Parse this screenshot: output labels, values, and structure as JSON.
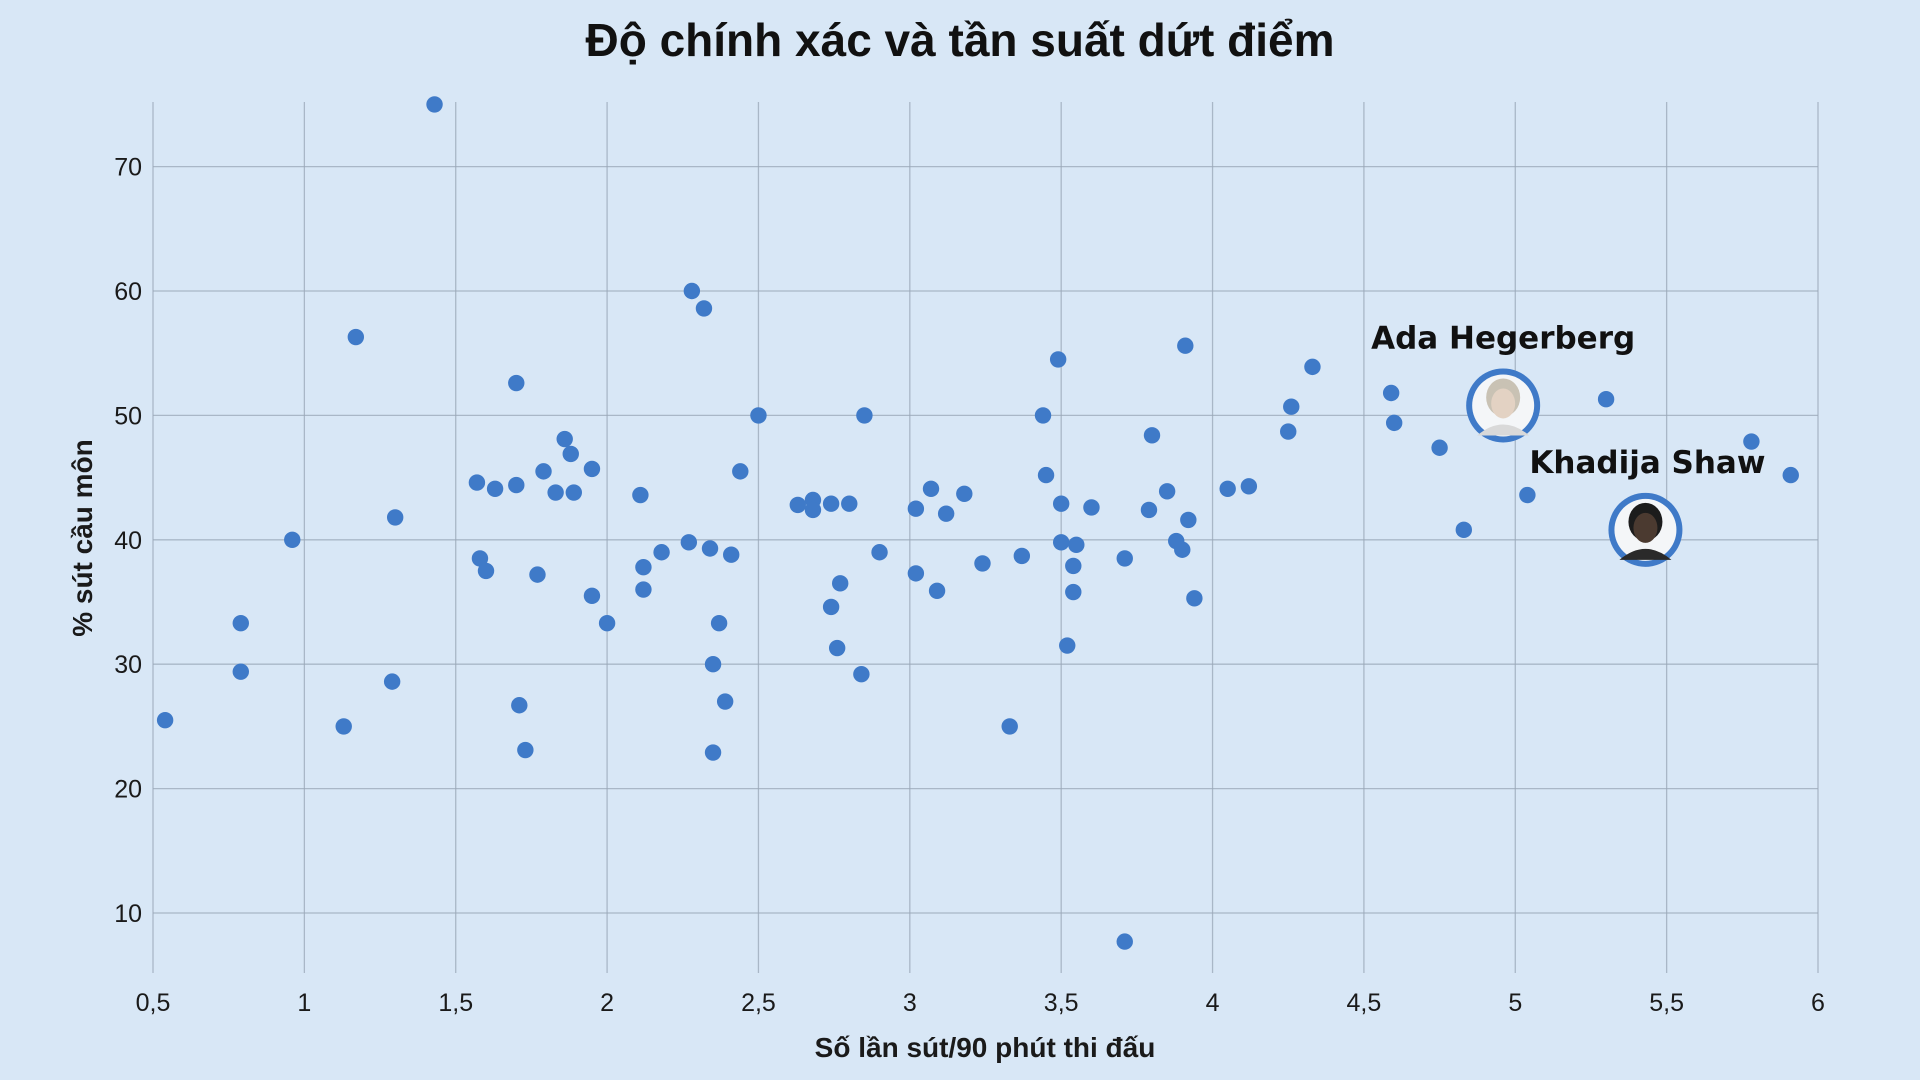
{
  "chart_data": {
    "type": "scatter",
    "title": "Độ chính xác và tần suất dứt điểm",
    "xlabel": "Số lần sút/90 phút thi đấu",
    "ylabel": "% sút cầu môn",
    "xlim": [
      0.5,
      6
    ],
    "ylim": [
      5,
      76
    ],
    "x_ticks": [
      0.5,
      1,
      1.5,
      2,
      2.5,
      3,
      3.5,
      4,
      4.5,
      5,
      5.5,
      6
    ],
    "x_tick_labels": [
      "0,5",
      "1",
      "1,5",
      "2",
      "2,5",
      "3",
      "3,5",
      "4",
      "4,5",
      "5",
      "5,5",
      "6"
    ],
    "y_ticks": [
      10,
      20,
      30,
      40,
      50,
      60,
      70
    ],
    "y_tick_labels": [
      "10",
      "20",
      "30",
      "40",
      "50",
      "60",
      "70"
    ],
    "grid": true,
    "colors": {
      "point": "#3f7ac8",
      "background": "#d8e7f6",
      "grid": "#9aa8b8"
    },
    "points": [
      {
        "x": 0.54,
        "y": 25.5
      },
      {
        "x": 0.79,
        "y": 33.3
      },
      {
        "x": 0.79,
        "y": 29.4
      },
      {
        "x": 0.96,
        "y": 40.0
      },
      {
        "x": 1.13,
        "y": 25.0
      },
      {
        "x": 1.17,
        "y": 56.3
      },
      {
        "x": 1.29,
        "y": 28.6
      },
      {
        "x": 1.3,
        "y": 41.8
      },
      {
        "x": 1.43,
        "y": 75.0
      },
      {
        "x": 1.57,
        "y": 44.6
      },
      {
        "x": 1.58,
        "y": 38.5
      },
      {
        "x": 1.6,
        "y": 37.5
      },
      {
        "x": 1.63,
        "y": 44.1
      },
      {
        "x": 1.7,
        "y": 52.6
      },
      {
        "x": 1.7,
        "y": 44.4
      },
      {
        "x": 1.71,
        "y": 26.7
      },
      {
        "x": 1.73,
        "y": 23.1
      },
      {
        "x": 1.77,
        "y": 37.2
      },
      {
        "x": 1.79,
        "y": 45.5
      },
      {
        "x": 1.83,
        "y": 43.8
      },
      {
        "x": 1.86,
        "y": 48.1
      },
      {
        "x": 1.88,
        "y": 46.9
      },
      {
        "x": 1.89,
        "y": 43.8
      },
      {
        "x": 1.95,
        "y": 45.7
      },
      {
        "x": 1.95,
        "y": 35.5
      },
      {
        "x": 2.0,
        "y": 33.3
      },
      {
        "x": 2.11,
        "y": 43.6
      },
      {
        "x": 2.12,
        "y": 37.8
      },
      {
        "x": 2.12,
        "y": 36.0
      },
      {
        "x": 2.18,
        "y": 39.0
      },
      {
        "x": 2.27,
        "y": 39.8
      },
      {
        "x": 2.28,
        "y": 60.0
      },
      {
        "x": 2.32,
        "y": 58.6
      },
      {
        "x": 2.34,
        "y": 39.3
      },
      {
        "x": 2.35,
        "y": 30.0
      },
      {
        "x": 2.35,
        "y": 22.9
      },
      {
        "x": 2.37,
        "y": 33.3
      },
      {
        "x": 2.39,
        "y": 27.0
      },
      {
        "x": 2.41,
        "y": 38.8
      },
      {
        "x": 2.44,
        "y": 45.5
      },
      {
        "x": 2.5,
        "y": 50.0
      },
      {
        "x": 2.63,
        "y": 42.8
      },
      {
        "x": 2.68,
        "y": 43.2
      },
      {
        "x": 2.68,
        "y": 42.4
      },
      {
        "x": 2.74,
        "y": 42.9
      },
      {
        "x": 2.74,
        "y": 34.6
      },
      {
        "x": 2.76,
        "y": 31.3
      },
      {
        "x": 2.77,
        "y": 36.5
      },
      {
        "x": 2.8,
        "y": 42.9
      },
      {
        "x": 2.84,
        "y": 29.2
      },
      {
        "x": 2.85,
        "y": 50.0
      },
      {
        "x": 2.9,
        "y": 39.0
      },
      {
        "x": 3.02,
        "y": 37.3
      },
      {
        "x": 3.02,
        "y": 42.5
      },
      {
        "x": 3.07,
        "y": 44.1
      },
      {
        "x": 3.09,
        "y": 35.9
      },
      {
        "x": 3.12,
        "y": 42.1
      },
      {
        "x": 3.18,
        "y": 43.7
      },
      {
        "x": 3.24,
        "y": 38.1
      },
      {
        "x": 3.33,
        "y": 25.0
      },
      {
        "x": 3.37,
        "y": 38.7
      },
      {
        "x": 3.44,
        "y": 50.0
      },
      {
        "x": 3.45,
        "y": 45.2
      },
      {
        "x": 3.49,
        "y": 54.5
      },
      {
        "x": 3.5,
        "y": 42.9
      },
      {
        "x": 3.5,
        "y": 39.8
      },
      {
        "x": 3.52,
        "y": 31.5
      },
      {
        "x": 3.54,
        "y": 37.9
      },
      {
        "x": 3.54,
        "y": 35.8
      },
      {
        "x": 3.55,
        "y": 39.6
      },
      {
        "x": 3.6,
        "y": 42.6
      },
      {
        "x": 3.71,
        "y": 38.5
      },
      {
        "x": 3.71,
        "y": 7.7
      },
      {
        "x": 3.79,
        "y": 42.4
      },
      {
        "x": 3.8,
        "y": 48.4
      },
      {
        "x": 3.85,
        "y": 43.9
      },
      {
        "x": 3.88,
        "y": 39.9
      },
      {
        "x": 3.9,
        "y": 39.2
      },
      {
        "x": 3.91,
        "y": 55.6
      },
      {
        "x": 3.92,
        "y": 41.6
      },
      {
        "x": 3.94,
        "y": 35.3
      },
      {
        "x": 4.05,
        "y": 44.1
      },
      {
        "x": 4.12,
        "y": 44.3
      },
      {
        "x": 4.25,
        "y": 48.7
      },
      {
        "x": 4.26,
        "y": 50.7
      },
      {
        "x": 4.33,
        "y": 53.9
      },
      {
        "x": 4.59,
        "y": 51.8
      },
      {
        "x": 4.6,
        "y": 49.4
      },
      {
        "x": 4.75,
        "y": 47.4
      },
      {
        "x": 4.83,
        "y": 40.8
      },
      {
        "x": 5.04,
        "y": 43.6
      },
      {
        "x": 5.3,
        "y": 51.3
      },
      {
        "x": 5.78,
        "y": 47.9
      },
      {
        "x": 5.91,
        "y": 45.2
      }
    ],
    "highlighted": [
      {
        "name": "Ada Hegerberg",
        "x": 4.96,
        "y": 50.8
      },
      {
        "name": "Khadija Shaw",
        "x": 5.43,
        "y": 40.8
      }
    ]
  }
}
